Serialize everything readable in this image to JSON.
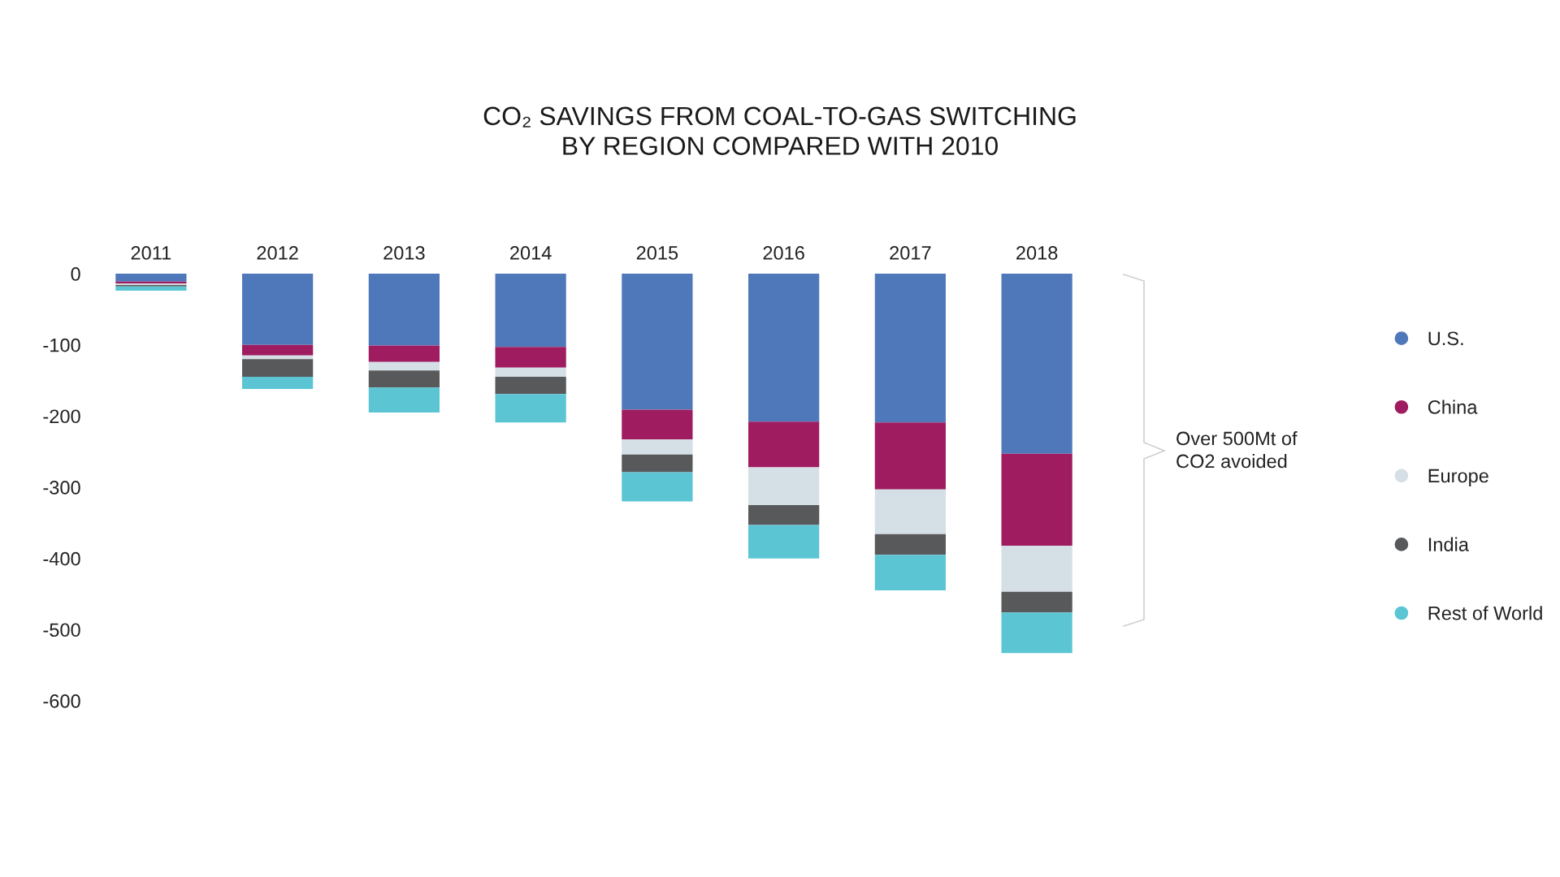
{
  "chart_data": {
    "type": "bar",
    "title": "CO₂ SAVINGS FROM COAL-TO-GAS SWITCHING\nBY REGION COMPARED WITH 2010",
    "categories": [
      "2011",
      "2012",
      "2013",
      "2014",
      "2015",
      "2016",
      "2017",
      "2018"
    ],
    "stacked": true,
    "series": [
      {
        "name": "U.S.",
        "color": "#4f78bb",
        "values": [
          -11,
          -100,
          -101,
          -103,
          -191,
          -208,
          -209,
          -253
        ]
      },
      {
        "name": "China",
        "color": "#9e1c5f",
        "values": [
          -3,
          -15,
          -23,
          -29,
          -42,
          -64,
          -94,
          -129
        ]
      },
      {
        "name": "Europe",
        "color": "#d5dfe6",
        "values": [
          -2,
          -5,
          -12,
          -13,
          -21,
          -53,
          -63,
          -65
        ]
      },
      {
        "name": "India",
        "color": "#58595b",
        "values": [
          -2,
          -25,
          -24,
          -24,
          -25,
          -28,
          -29,
          -29
        ]
      },
      {
        "name": "Rest of World",
        "color": "#5bc5d4",
        "values": [
          -6,
          -17,
          -35,
          -40,
          -41,
          -47,
          -50,
          -57
        ]
      }
    ],
    "ylim": [
      -600,
      0
    ],
    "yticks": [
      0,
      -100,
      -200,
      -300,
      -400,
      -500,
      -600
    ],
    "grid": false,
    "legend": "right",
    "annotations": [
      "Over 500Mt of\nCO2 avoided"
    ]
  }
}
